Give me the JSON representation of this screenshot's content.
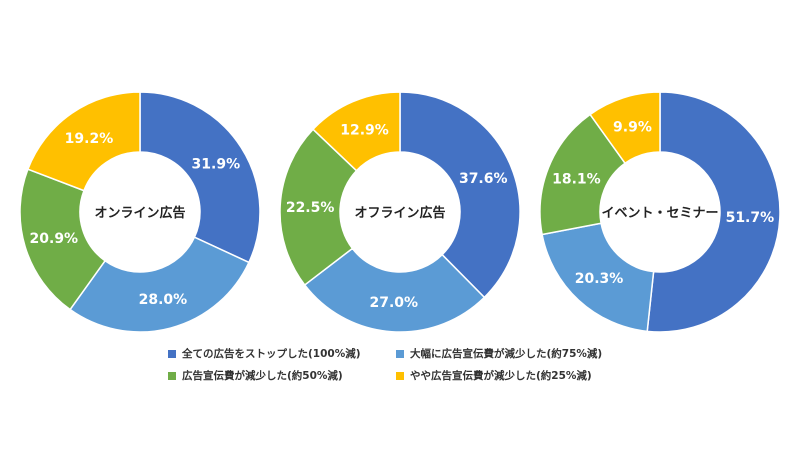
{
  "colors": {
    "full_stop": "#4472c4",
    "large_reduce": "#5b9bd5",
    "reduced_50": "#70ad47",
    "slight_reduce": "#ffc000"
  },
  "legend": [
    {
      "key": "full_stop",
      "label": "全ての広告をストップした(100%減)"
    },
    {
      "key": "large_reduce",
      "label": "大幅に広告宣伝費が減少した(約75%減)"
    },
    {
      "key": "reduced_50",
      "label": "広告宣伝費が減少した(約50%減)"
    },
    {
      "key": "slight_reduce",
      "label": "やや広告宣伝費が減少した(約25%減)"
    }
  ],
  "chart_data": [
    {
      "type": "pie",
      "title": "オンライン広告",
      "categories": [
        "全ての広告をストップした(100%減)",
        "大幅に広告宣伝費が減少した(約75%減)",
        "広告宣伝費が減少した(約50%減)",
        "やや広告宣伝費が減少した(約25%減)"
      ],
      "values": [
        31.9,
        28.0,
        20.9,
        19.2
      ],
      "labels": [
        "31.9%",
        "28.0%",
        "20.9%",
        "19.2%"
      ]
    },
    {
      "type": "pie",
      "title": "オフライン広告",
      "categories": [
        "全ての広告をストップした(100%減)",
        "大幅に広告宣伝費が減少した(約75%減)",
        "広告宣伝費が減少した(約50%減)",
        "やや広告宣伝費が減少した(約25%減)"
      ],
      "values": [
        37.6,
        27.0,
        22.5,
        12.9
      ],
      "labels": [
        "37.6%",
        "27.0%",
        "22.5%",
        "12.9%"
      ]
    },
    {
      "type": "pie",
      "title": "イベント・セミナー",
      "categories": [
        "全ての広告をストップした(100%減)",
        "大幅に広告宣伝費が減少した(約75%減)",
        "広告宣伝費が減少した(約50%減)",
        "やや広告宣伝費が減少した(約25%減)"
      ],
      "values": [
        51.7,
        20.3,
        18.1,
        9.9
      ],
      "labels": [
        "51.7%",
        "20.3%",
        "18.1%",
        "9.9%"
      ]
    }
  ]
}
